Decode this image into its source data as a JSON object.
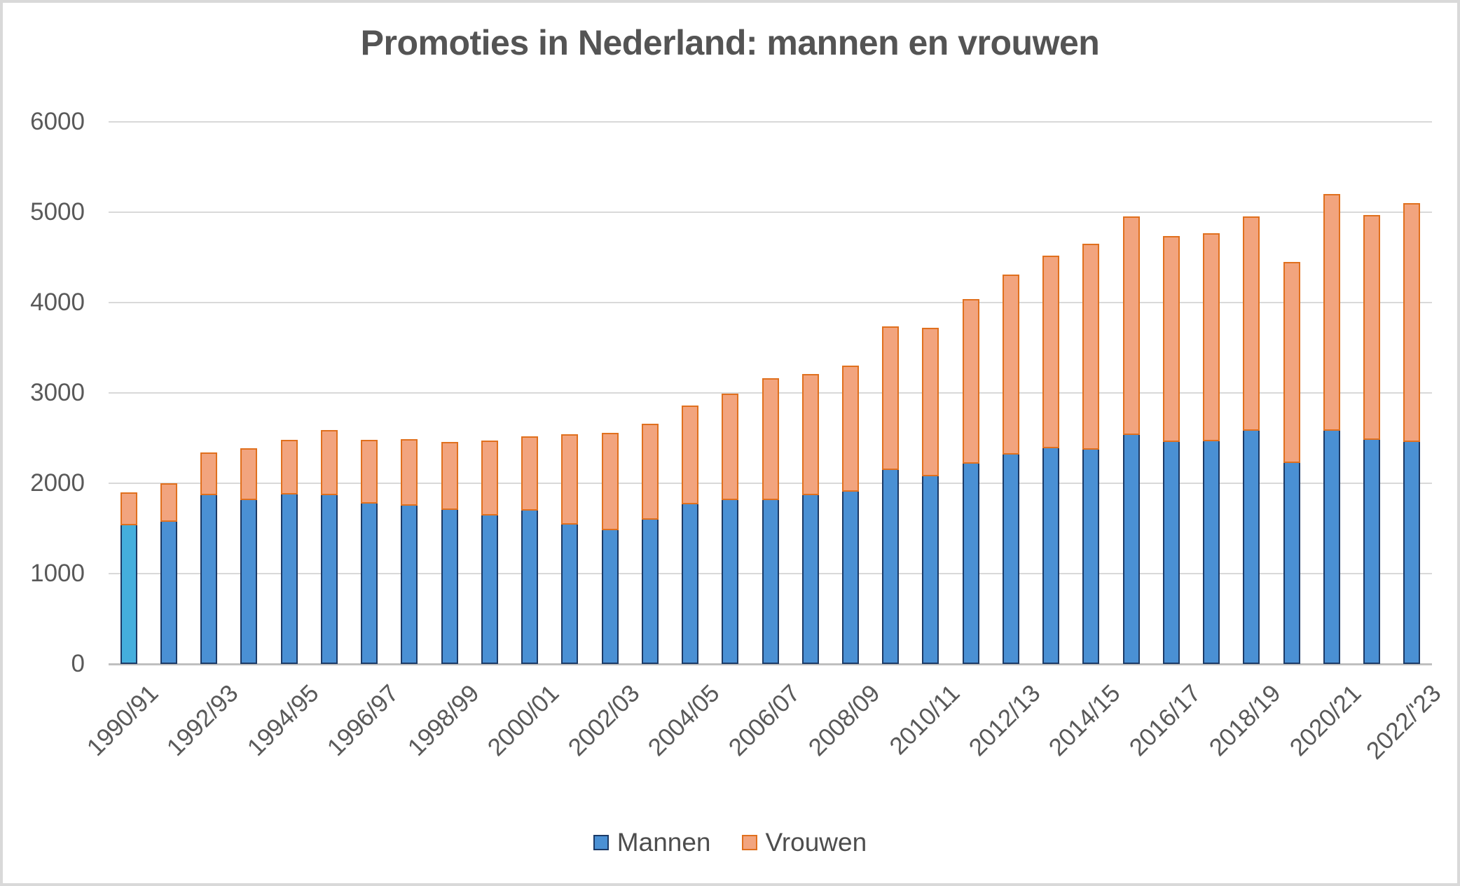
{
  "title": "Promoties in Nederland: mannen en vrouwen",
  "colors": {
    "mannen_fill": "#4A90D4",
    "mannen_border": "#1C3A66",
    "mannen_first_bar_fill": "#44AEDD",
    "vrouwen_fill": "#F2A47E",
    "vrouwen_border": "#E0701E",
    "gridline": "#D9D9D9",
    "axis_line": "#BFBFBF",
    "text_gray": "#595959",
    "title_gray": "#545454",
    "frame_border": "#D9D9D9"
  },
  "chart_data": {
    "type": "bar",
    "stacked": true,
    "title": "Promoties in Nederland: mannen en vrouwen",
    "xlabel": "",
    "ylabel": "",
    "ylim": [
      0,
      6000
    ],
    "grid": true,
    "legend_position": "bottom",
    "y_ticks": [
      0,
      1000,
      2000,
      3000,
      4000,
      5000,
      6000
    ],
    "y_tick_labels": [
      "0",
      "1000",
      "2000",
      "3000",
      "4000",
      "5000",
      "6000"
    ],
    "x_tick_labels": [
      "1990/91",
      "1992/93",
      "1994/95",
      "1996/97",
      "1998/99",
      "2000/01",
      "2002/03",
      "2004/05",
      "2006/07",
      "2008/09",
      "2010/11",
      "2012/13",
      "2014/15",
      "2016/17",
      "2018/19",
      "2020/21",
      "2022/'23"
    ],
    "x_tick_every": 2,
    "categories": [
      "1990/91",
      "1991/92",
      "1992/93",
      "1993/94",
      "1994/95",
      "1995/96",
      "1996/97",
      "1997/98",
      "1998/99",
      "1999/00",
      "2000/01",
      "2001/02",
      "2002/03",
      "2003/04",
      "2004/05",
      "2005/06",
      "2006/07",
      "2007/08",
      "2008/09",
      "2009/10",
      "2010/11",
      "2011/12",
      "2012/13",
      "2013/14",
      "2014/15",
      "2015/16",
      "2016/17",
      "2017/18",
      "2018/19",
      "2019/20",
      "2020/21",
      "2021/22",
      "2022/23"
    ],
    "series": [
      {
        "name": "Mannen",
        "values": [
          1550,
          1590,
          1880,
          1830,
          1890,
          1880,
          1790,
          1770,
          1720,
          1660,
          1710,
          1560,
          1500,
          1610,
          1780,
          1830,
          1830,
          1880,
          1920,
          2160,
          2090,
          2230,
          2330,
          2400,
          2390,
          2550,
          2470,
          2480,
          2600,
          2240,
          2600,
          2500,
          2470
        ]
      },
      {
        "name": "Vrouwen",
        "values": [
          350,
          410,
          460,
          560,
          590,
          710,
          690,
          720,
          740,
          810,
          810,
          980,
          1060,
          1050,
          1080,
          1160,
          1330,
          1330,
          1380,
          1580,
          1630,
          1810,
          1980,
          2120,
          2260,
          2400,
          2270,
          2290,
          2350,
          2210,
          2600,
          2470,
          2630
        ]
      }
    ],
    "highlight": {
      "category_index": 0,
      "series": "Mannen",
      "note_color": "#44AEDD"
    }
  },
  "legend": {
    "items": [
      {
        "label": "Mannen"
      },
      {
        "label": "Vrouwen"
      }
    ]
  }
}
